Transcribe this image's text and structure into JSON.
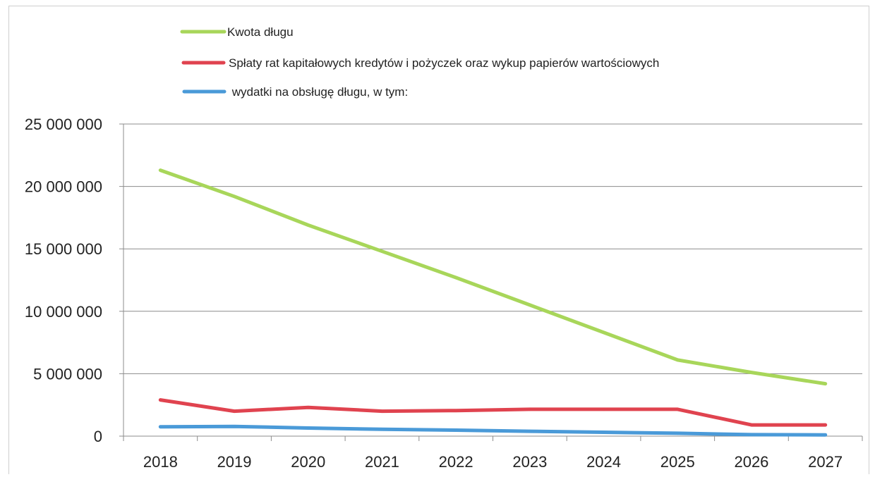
{
  "chart_data": {
    "type": "line",
    "title": "",
    "xlabel": "",
    "ylabel": "",
    "categories": [
      "2018",
      "2019",
      "2020",
      "2021",
      "2022",
      "2023",
      "2024",
      "2025",
      "2026",
      "2027"
    ],
    "ylim": [
      0,
      25000000
    ],
    "yticks": [
      0,
      5000000,
      10000000,
      15000000,
      20000000,
      25000000
    ],
    "ytick_labels": [
      "0",
      "5 000 000",
      "10 000 000",
      "15 000 000",
      "20 000 000",
      "25 000 000"
    ],
    "grid": true,
    "legend_position": "top",
    "series": [
      {
        "name": "Kwota długu",
        "color": "#a8d65a",
        "values": [
          21300000,
          19200000,
          16900000,
          14800000,
          12700000,
          10500000,
          8300000,
          6100000,
          5100000,
          4200000
        ]
      },
      {
        "name": "Spłaty rat kapitałowych kredytów i pożyczek oraz wykup papierów wartościowych",
        "color": "#e0434f",
        "values": [
          2900000,
          2000000,
          2300000,
          2000000,
          2050000,
          2150000,
          2150000,
          2150000,
          900000,
          900000
        ]
      },
      {
        "name": " wydatki na obsługę długu, w tym:",
        "color": "#4a9ad8",
        "values": [
          750000,
          780000,
          650000,
          550000,
          480000,
          390000,
          310000,
          230000,
          120000,
          100000
        ]
      }
    ]
  }
}
